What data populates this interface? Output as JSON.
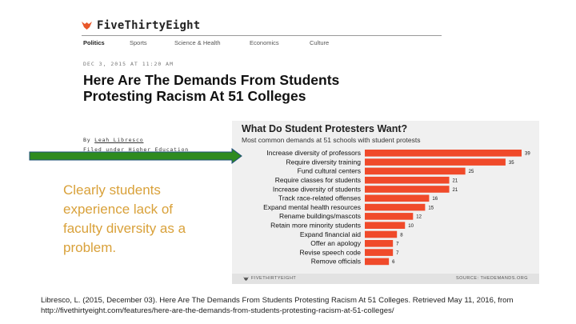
{
  "site": {
    "name": "FiveThirtyEight",
    "nav": [
      "Politics",
      "Sports",
      "Science & Health",
      "Economics",
      "Culture"
    ]
  },
  "article": {
    "dateline": "DEC 3, 2015 AT 11:20 AM",
    "headline": "Here Are The Demands From Students Protesting Racism At 51 Colleges",
    "byline_prefix": "By",
    "author": "Leah Libresco",
    "filed_prefix": "Filed under",
    "filed_topic": "Higher Education"
  },
  "caption": "Clearly students experience lack of faculty diversity as a problem.",
  "chart_data": {
    "type": "bar",
    "orientation": "horizontal",
    "title": "What Do Student Protesters Want?",
    "subtitle": "Most common demands at 51 schools with student protests",
    "categories": [
      "Increase diversity of professors",
      "Require diversity training",
      "Fund cultural centers",
      "Require classes for students",
      "Increase diversity of students",
      "Track race-related offenses",
      "Expand mental health resources",
      "Rename buildings/mascots",
      "Retain more minority students",
      "Expand financial aid",
      "Offer an apology",
      "Revise speech code",
      "Remove officials"
    ],
    "values": [
      39,
      35,
      25,
      21,
      21,
      16,
      15,
      12,
      10,
      8,
      7,
      7,
      6
    ],
    "xlim": [
      0,
      39
    ],
    "bar_color": "#f04a2a",
    "grid": false,
    "footer_left": "FIVETHIRTYEIGHT",
    "footer_right": "SOURCE: THEDEMANDS.ORG"
  },
  "citation": "Libresco, L. (2015, December 03). Here Are The Demands From Students Protesting Racism At 51 Colleges. Retrieved May 11, 2016, from http://fivethirtyeight.com/features/here-are-the-demands-from-students-protesting-racism-at-51-colleges/",
  "colors": {
    "arrow_fill": "#2e8b1f",
    "arrow_stroke": "#1f4f7a",
    "caption": "#d9a13a",
    "logo_accent": "#e8572a"
  },
  "icons": {
    "logo": "fox-logo-icon",
    "arrow": "arrow-right-icon"
  }
}
